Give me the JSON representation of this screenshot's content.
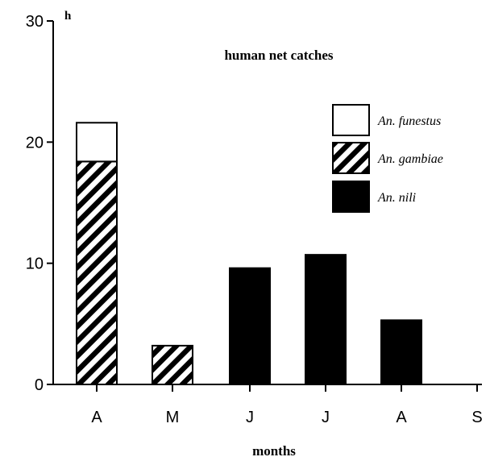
{
  "chart_data": {
    "type": "bar",
    "stacked": true,
    "panel_label": "h",
    "title": "human net catches",
    "xlabel": "months",
    "ylabel": "",
    "categories": [
      "A",
      "M",
      "J",
      "J",
      "A",
      "S"
    ],
    "ylim": [
      0,
      30
    ],
    "yticks": [
      0,
      10,
      20,
      30
    ],
    "legend_position": "top-right",
    "series": [
      {
        "name": "An. nili",
        "values": [
          0,
          0,
          9.6,
          10.7,
          5.3,
          0
        ],
        "fill": "solid",
        "color": "#000000"
      },
      {
        "name": "An. gambiae",
        "values": [
          18.4,
          3.2,
          0,
          0,
          0,
          0
        ],
        "fill": "hatched",
        "color": "#000000"
      },
      {
        "name": "An. funestus",
        "values": [
          3.2,
          0,
          0,
          0,
          0,
          0
        ],
        "fill": "open",
        "color": "#ffffff"
      }
    ],
    "legend_order": [
      "An. funestus",
      "An. gambiae",
      "An. nili"
    ]
  }
}
